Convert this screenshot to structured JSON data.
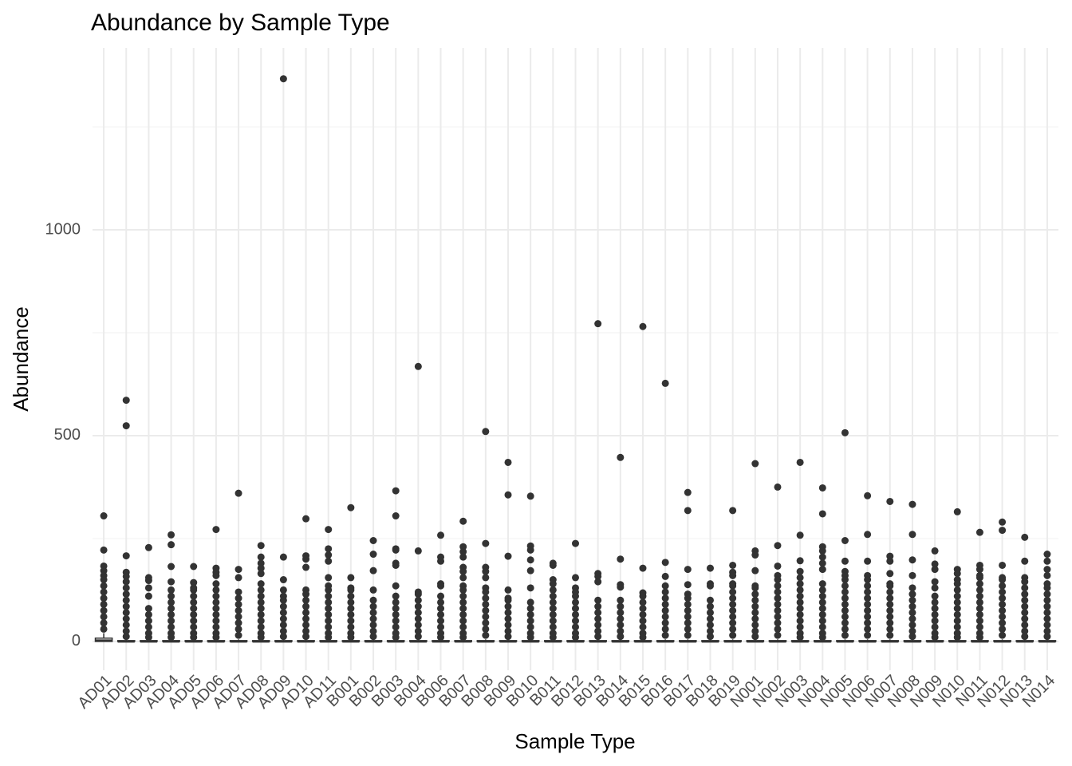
{
  "chart_data": {
    "type": "boxplot",
    "title": "Abundance by Sample Type",
    "x_label": "Sample Type",
    "y_label": "Abundance",
    "categories": [
      "AD01",
      "AD02",
      "AD03",
      "AD04",
      "AD05",
      "AD06",
      "AD07",
      "AD08",
      "AD09",
      "AD10",
      "AD11",
      "B001",
      "B002",
      "B003",
      "B004",
      "B006",
      "B007",
      "B008",
      "B009",
      "B010",
      "B011",
      "B012",
      "B013",
      "B014",
      "B015",
      "B016",
      "B017",
      "B018",
      "B019",
      "N001",
      "N002",
      "N003",
      "N004",
      "N005",
      "N006",
      "N007",
      "N008",
      "N009",
      "N010",
      "N011",
      "N012",
      "N013",
      "N014"
    ],
    "whisker_low": [
      0,
      0,
      0,
      0,
      0,
      0,
      0,
      0,
      0,
      0,
      0,
      0,
      0,
      0,
      0,
      0,
      0,
      0,
      0,
      0,
      0,
      0,
      0,
      0,
      0,
      0,
      0,
      0,
      0,
      0,
      0,
      0,
      0,
      0,
      0,
      0,
      0,
      0,
      0,
      0,
      0,
      0,
      0
    ],
    "q1": [
      0,
      0,
      0,
      0,
      0,
      0,
      0,
      0,
      0,
      0,
      0,
      0,
      0,
      0,
      0,
      0,
      0,
      0,
      0,
      0,
      0,
      0,
      0,
      0,
      0,
      0,
      0,
      0,
      0,
      0,
      0,
      0,
      0,
      0,
      0,
      0,
      0,
      0,
      0,
      0,
      0,
      0,
      0
    ],
    "median": [
      2,
      0,
      0,
      0,
      0,
      0,
      0,
      0,
      0,
      0,
      0,
      0,
      0,
      0,
      0,
      0,
      0,
      0,
      0,
      0,
      0,
      0,
      0,
      0,
      0,
      0,
      0,
      0,
      0,
      0,
      0,
      0,
      0,
      0,
      0,
      0,
      0,
      0,
      0,
      0,
      0,
      0,
      0
    ],
    "q3": [
      8,
      2,
      2,
      2,
      2,
      2,
      2,
      2,
      2,
      2,
      2,
      2,
      2,
      2,
      2,
      2,
      2,
      2,
      2,
      2,
      2,
      2,
      2,
      2,
      2,
      2,
      2,
      2,
      2,
      2,
      2,
      2,
      2,
      2,
      2,
      2,
      2,
      2,
      2,
      2,
      2,
      2,
      2
    ],
    "whisker_high": [
      20,
      5,
      5,
      5,
      5,
      5,
      5,
      5,
      5,
      5,
      5,
      5,
      5,
      5,
      5,
      5,
      5,
      5,
      5,
      5,
      5,
      5,
      5,
      5,
      5,
      5,
      5,
      5,
      5,
      5,
      5,
      5,
      5,
      5,
      5,
      5,
      5,
      5,
      5,
      5,
      5,
      5,
      5
    ],
    "outliers": [
      [
        305,
        222,
        183,
        172,
        160,
        150,
        135,
        120,
        105,
        90,
        75,
        60,
        45,
        30
      ],
      [
        586,
        524,
        208,
        168,
        158,
        145,
        130,
        115,
        100,
        85,
        70,
        55,
        40,
        25,
        12
      ],
      [
        228,
        155,
        148,
        130,
        110,
        80,
        65,
        50,
        35,
        20,
        10
      ],
      [
        259,
        235,
        182,
        145,
        125,
        110,
        95,
        80,
        65,
        50,
        35,
        20,
        10
      ],
      [
        182,
        143,
        130,
        125,
        110,
        95,
        80,
        65,
        50,
        35,
        20,
        10
      ],
      [
        272,
        178,
        168,
        160,
        140,
        125,
        110,
        95,
        80,
        65,
        50,
        35,
        20,
        10
      ],
      [
        360,
        175,
        155,
        120,
        105,
        90,
        75,
        60,
        45,
        30,
        15
      ],
      [
        233,
        205,
        190,
        178,
        165,
        140,
        125,
        110,
        95,
        80,
        65,
        50,
        35,
        20,
        10
      ],
      [
        1367,
        205,
        150,
        125,
        110,
        100,
        85,
        70,
        55,
        40,
        25,
        12
      ],
      [
        298,
        208,
        200,
        180,
        125,
        115,
        100,
        85,
        70,
        55,
        40,
        25,
        12
      ],
      [
        272,
        225,
        210,
        195,
        155,
        135,
        125,
        110,
        95,
        80,
        65,
        50,
        35,
        20,
        10
      ],
      [
        325,
        155,
        130,
        125,
        110,
        95,
        80,
        65,
        50,
        35,
        20,
        10
      ],
      [
        245,
        212,
        172,
        125,
        100,
        85,
        70,
        55,
        40,
        25,
        12
      ],
      [
        366,
        305,
        225,
        222,
        190,
        185,
        135,
        110,
        95,
        80,
        65,
        50,
        35,
        20,
        10
      ],
      [
        668,
        220,
        120,
        115,
        100,
        85,
        70,
        55,
        40,
        25,
        12
      ],
      [
        258,
        205,
        195,
        140,
        135,
        110,
        95,
        80,
        65,
        50,
        35,
        20,
        10
      ],
      [
        292,
        230,
        218,
        205,
        180,
        170,
        155,
        135,
        125,
        110,
        95,
        80,
        65,
        50,
        35,
        20,
        10
      ],
      [
        510,
        238,
        180,
        170,
        155,
        130,
        120,
        105,
        90,
        75,
        60,
        45,
        30,
        15
      ],
      [
        435,
        356,
        207,
        125,
        105,
        100,
        85,
        70,
        55,
        40,
        25,
        12
      ],
      [
        353,
        232,
        222,
        198,
        172,
        130,
        95,
        80,
        65,
        50,
        35,
        20,
        10
      ],
      [
        190,
        185,
        150,
        140,
        125,
        110,
        95,
        80,
        65,
        50,
        35,
        20,
        10
      ],
      [
        238,
        155,
        130,
        120,
        110,
        95,
        80,
        65,
        50,
        35,
        20,
        10
      ],
      [
        772,
        165,
        158,
        145,
        100,
        85,
        70,
        55,
        40,
        25,
        12
      ],
      [
        447,
        200,
        138,
        132,
        100,
        85,
        70,
        55,
        40,
        25,
        12
      ],
      [
        765,
        178,
        118,
        110,
        95,
        80,
        65,
        50,
        35,
        20,
        10
      ],
      [
        627,
        192,
        158,
        135,
        120,
        105,
        90,
        75,
        60,
        45,
        30,
        15
      ],
      [
        362,
        318,
        175,
        138,
        115,
        105,
        90,
        75,
        60,
        45,
        30,
        15
      ],
      [
        178,
        140,
        135,
        100,
        85,
        70,
        55,
        40,
        25,
        12
      ],
      [
        318,
        185,
        168,
        160,
        140,
        135,
        120,
        105,
        90,
        75,
        60,
        45,
        30,
        15
      ],
      [
        432,
        220,
        210,
        172,
        135,
        130,
        115,
        100,
        85,
        70,
        55,
        40,
        25,
        12
      ],
      [
        375,
        233,
        183,
        160,
        150,
        135,
        120,
        105,
        90,
        75,
        60,
        45,
        30,
        15
      ],
      [
        435,
        258,
        196,
        170,
        155,
        140,
        125,
        110,
        95,
        80,
        65,
        50,
        35,
        20,
        10
      ],
      [
        373,
        310,
        230,
        220,
        205,
        190,
        175,
        140,
        125,
        110,
        95,
        80,
        65,
        50,
        35,
        20,
        10
      ],
      [
        507,
        245,
        195,
        170,
        160,
        150,
        135,
        120,
        105,
        90,
        75,
        60,
        45,
        30,
        15
      ],
      [
        354,
        260,
        195,
        160,
        150,
        135,
        120,
        105,
        90,
        75,
        60,
        45,
        30,
        15
      ],
      [
        340,
        207,
        195,
        165,
        140,
        135,
        120,
        105,
        90,
        75,
        60,
        45,
        30,
        15
      ],
      [
        333,
        260,
        198,
        160,
        130,
        115,
        100,
        85,
        70,
        55,
        40,
        25,
        12
      ],
      [
        220,
        188,
        175,
        145,
        130,
        110,
        95,
        80,
        65,
        50,
        35,
        20,
        10
      ],
      [
        315,
        175,
        165,
        150,
        140,
        125,
        110,
        95,
        80,
        65,
        50,
        35,
        20,
        10
      ],
      [
        265,
        185,
        175,
        160,
        155,
        140,
        125,
        110,
        95,
        80,
        65,
        50,
        35,
        20,
        10
      ],
      [
        290,
        270,
        185,
        155,
        150,
        135,
        120,
        105,
        90,
        75,
        60,
        45,
        30,
        15
      ],
      [
        253,
        195,
        155,
        145,
        130,
        115,
        100,
        85,
        70,
        55,
        40,
        25,
        12
      ],
      [
        212,
        195,
        175,
        160,
        140,
        130,
        115,
        100,
        85,
        70,
        55,
        40,
        25,
        12
      ]
    ],
    "color": "#333333",
    "ylim": [
      -70,
      1442
    ],
    "yticks": [
      0,
      500,
      1000
    ],
    "minor_yticks": [
      250,
      750,
      1250
    ],
    "grid": true
  }
}
